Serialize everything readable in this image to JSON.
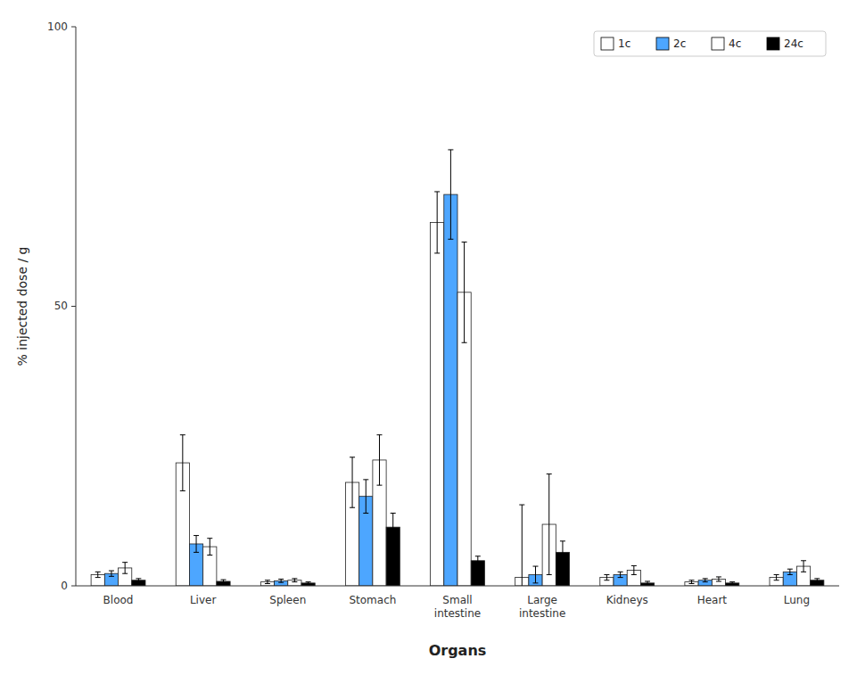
{
  "chart_data": {
    "type": "bar",
    "xlabel": "Organs",
    "ylabel": "% injected dose / g",
    "categories": [
      "Blood",
      "Liver",
      "Spleen",
      "Stomach",
      "Small\nintestine",
      "Large\nintestine",
      "Kidneys",
      "Heart",
      "Lung"
    ],
    "series": [
      {
        "name": "1c",
        "color": "#ffffff",
        "values": [
          2.0,
          22.0,
          0.7,
          18.5,
          65.0,
          1.5,
          1.5,
          0.7,
          1.5
        ],
        "errors": [
          0.5,
          5.0,
          0.3,
          4.5,
          5.5,
          13.0,
          0.5,
          0.3,
          0.5
        ]
      },
      {
        "name": "2c",
        "color": "#4da6ff",
        "values": [
          2.2,
          7.5,
          0.9,
          16.0,
          70.0,
          2.0,
          2.0,
          1.0,
          2.5
        ],
        "errors": [
          0.5,
          1.5,
          0.3,
          3.0,
          8.0,
          1.5,
          0.5,
          0.3,
          0.5
        ]
      },
      {
        "name": "4c",
        "color": "#ffffff",
        "values": [
          3.2,
          7.0,
          1.0,
          22.5,
          52.5,
          11.0,
          2.8,
          1.2,
          3.5
        ],
        "errors": [
          1.0,
          1.5,
          0.3,
          4.5,
          9.0,
          9.0,
          0.8,
          0.4,
          1.0
        ]
      },
      {
        "name": "24c",
        "color": "#000000",
        "values": [
          1.0,
          0.8,
          0.5,
          10.5,
          4.5,
          6.0,
          0.5,
          0.5,
          1.0
        ],
        "errors": [
          0.3,
          0.3,
          0.2,
          2.5,
          0.8,
          2.0,
          0.3,
          0.2,
          0.3
        ]
      }
    ],
    "ylim": [
      0,
      100
    ],
    "yticks": [
      0,
      50,
      100
    ],
    "grid": false,
    "legend": "upper right"
  }
}
